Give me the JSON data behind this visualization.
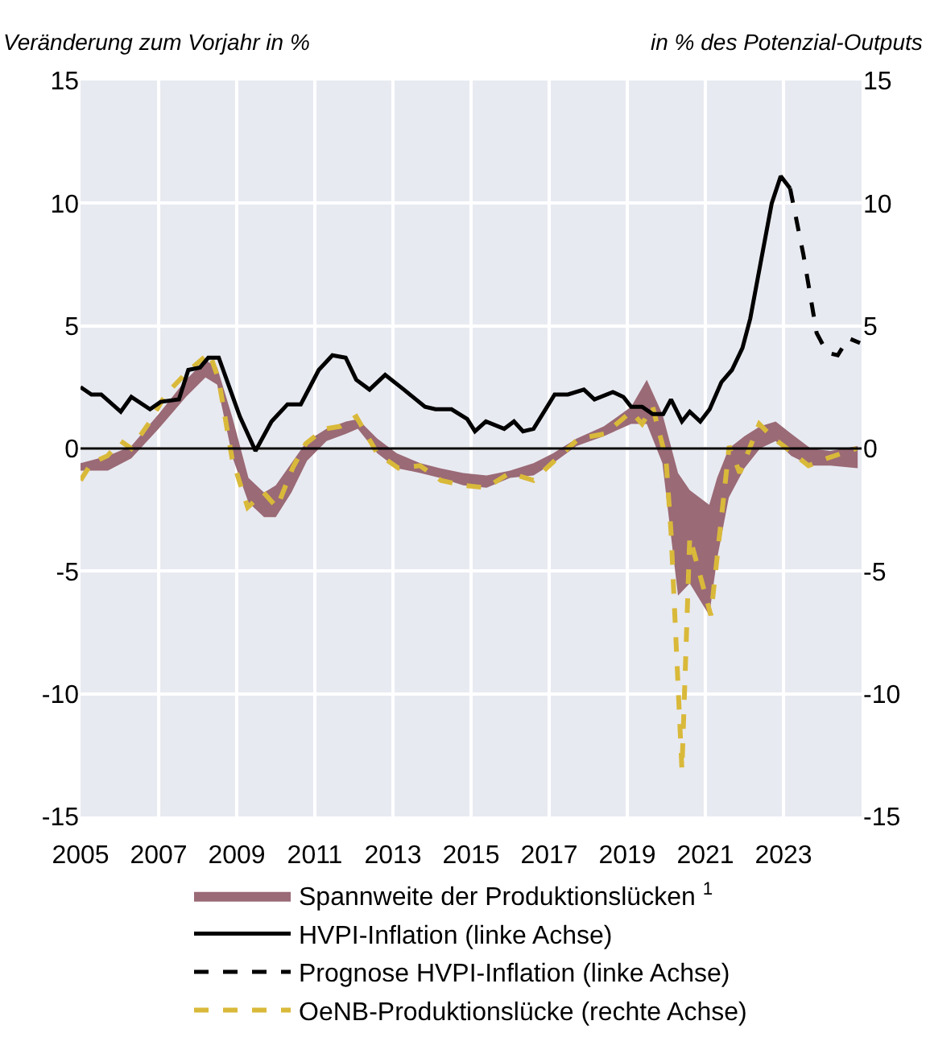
{
  "chart_data": {
    "type": "line",
    "ylabel": "Veränderung zum Vorjahr in %",
    "y2label": "in % des Potenzial-Outputs",
    "xlim": [
      2005,
      2025
    ],
    "xticks": [
      2005,
      2007,
      2009,
      2011,
      2013,
      2015,
      2017,
      2019,
      2021,
      2023
    ],
    "ylim": [
      -15,
      15
    ],
    "yticks": [
      -15,
      -10,
      -5,
      0,
      5,
      10,
      15
    ],
    "y2lim": [
      -15,
      15
    ],
    "y2ticks": [
      -15,
      -10,
      -5,
      0,
      5,
      10,
      15
    ],
    "grid": true,
    "legend": "bottom",
    "marker": "none",
    "ref_lines": [
      {
        "axis": "y",
        "value": 0,
        "color": "#000000"
      }
    ],
    "series": [
      {
        "name": "Spannweite der Produktionslücken $^{1}$",
        "type": "area",
        "axis": "y2",
        "color": "#9a6a76",
        "x": [
          2005.0,
          2005.7,
          2006.3,
          2007.0,
          2007.7,
          2008.2,
          2008.5,
          2008.9,
          2009.3,
          2009.7,
          2010.0,
          2010.4,
          2010.8,
          2011.3,
          2011.8,
          2012.1,
          2012.6,
          2013.1,
          2013.7,
          2014.2,
          2014.8,
          2015.4,
          2016.0,
          2016.6,
          2017.1,
          2017.7,
          2018.4,
          2019.1,
          2019.5,
          2019.9,
          2020.3,
          2020.6,
          2021.1,
          2021.3,
          2021.6,
          2022.0,
          2022.4,
          2022.8,
          2023.2,
          2023.7,
          2024.2,
          2024.9
        ],
        "values": [
          null,
          null,
          null,
          null,
          null,
          null,
          null,
          null,
          null,
          null,
          null,
          null,
          null,
          null,
          null,
          null,
          null,
          null,
          null,
          null,
          null,
          null,
          null,
          null,
          null,
          null,
          null,
          null,
          null,
          null,
          null,
          null,
          null,
          null,
          null,
          null,
          null,
          null,
          null,
          null,
          null,
          null
        ],
        "upper": [
          -0.6,
          -0.3,
          0.1,
          1.4,
          2.8,
          3.6,
          3.3,
          1.2,
          -1.2,
          -1.8,
          -1.5,
          -0.6,
          0.3,
          0.8,
          1.1,
          1.2,
          0.4,
          -0.2,
          -0.6,
          -0.8,
          -1.0,
          -1.1,
          -0.9,
          -0.6,
          -0.2,
          0.4,
          0.9,
          1.7,
          2.8,
          1.4,
          -1.0,
          -1.7,
          -2.3,
          -1.2,
          0.0,
          0.5,
          0.9,
          1.1,
          0.6,
          0.0,
          -0.1,
          0.1
        ],
        "lower": [
          -0.9,
          -0.9,
          -0.4,
          0.8,
          2.1,
          2.9,
          2.6,
          -0.4,
          -2.2,
          -2.8,
          -2.8,
          -1.8,
          -0.5,
          0.3,
          0.6,
          0.8,
          -0.2,
          -0.8,
          -1.0,
          -1.2,
          -1.5,
          -1.6,
          -1.2,
          -1.1,
          -0.6,
          0.1,
          0.5,
          1.0,
          1.0,
          -0.6,
          -6.0,
          -5.5,
          -6.8,
          -4.5,
          -2.0,
          -0.8,
          0.0,
          0.3,
          -0.3,
          -0.7,
          -0.7,
          -0.8
        ]
      },
      {
        "name": "HVPI-Inflation (linke Achse)",
        "line_style": "solid",
        "color": "#000000",
        "x": [
          2005.0,
          2005.28,
          2005.53,
          2006.03,
          2006.3,
          2006.78,
          2007.05,
          2007.52,
          2007.76,
          2008.06,
          2008.27,
          2008.54,
          2009.08,
          2009.48,
          2009.89,
          2010.3,
          2010.64,
          2011.1,
          2011.45,
          2011.79,
          2012.06,
          2012.4,
          2012.8,
          2013.28,
          2013.82,
          2014.09,
          2014.5,
          2014.9,
          2015.1,
          2015.38,
          2015.85,
          2016.1,
          2016.33,
          2016.6,
          2017.14,
          2017.48,
          2017.89,
          2018.16,
          2018.63,
          2018.9,
          2019.1,
          2019.38,
          2019.65,
          2019.92,
          2020.12,
          2020.4,
          2020.6,
          2020.87,
          2021.11,
          2021.41,
          2021.68,
          2021.95,
          2022.15,
          2022.43,
          2022.7,
          2022.93,
          2023.17
        ],
        "values": [
          2.5,
          2.2,
          2.2,
          1.5,
          2.1,
          1.6,
          1.9,
          2.0,
          3.2,
          3.3,
          3.7,
          3.7,
          1.3,
          -0.1,
          1.1,
          1.8,
          1.8,
          3.2,
          3.8,
          3.7,
          2.8,
          2.4,
          3.0,
          2.4,
          1.7,
          1.6,
          1.6,
          1.2,
          0.7,
          1.1,
          0.8,
          1.1,
          0.7,
          0.8,
          2.2,
          2.2,
          2.4,
          2.0,
          2.3,
          2.1,
          1.7,
          1.7,
          1.4,
          1.4,
          2.0,
          1.1,
          1.5,
          1.1,
          1.6,
          2.7,
          3.2,
          4.1,
          5.3,
          7.7,
          10.0,
          11.1,
          10.6
        ]
      },
      {
        "name": "Prognose HVPI-Inflation (linke Achse)",
        "line_style": "dashed",
        "color": "#000000",
        "x": [
          2023.17,
          2023.51,
          2023.85,
          2024.12,
          2024.39,
          2024.66,
          2024.96
        ],
        "values": [
          10.6,
          7.9,
          4.7,
          3.9,
          3.8,
          4.5,
          4.3
        ]
      },
      {
        "name": "OeNB-Produktionslücke (rechte Achse)",
        "line_style": "dashed",
        "axis": "y2",
        "color": "#d9b93a",
        "x": [
          2005.0,
          2005.28,
          2005.69,
          2006.03,
          2006.3,
          2006.78,
          2007.18,
          2007.72,
          2008.3,
          2008.54,
          2008.88,
          2009.28,
          2009.69,
          2010.03,
          2010.43,
          2010.77,
          2011.25,
          2011.65,
          2012.06,
          2012.6,
          2013.14,
          2013.69,
          2014.23,
          2014.77,
          2015.38,
          2015.99,
          2016.6,
          2017.07,
          2017.75,
          2018.43,
          2019.1,
          2019.38,
          2019.65,
          2019.99,
          2020.12,
          2020.4,
          2020.6,
          2021.14,
          2021.61,
          2021.88,
          2022.38,
          2022.76,
          2023.17,
          2023.64,
          2024.12,
          2024.87
        ],
        "values": [
          -1.3,
          -0.6,
          -0.3,
          0.3,
          0.0,
          1.1,
          2.2,
          3.1,
          3.9,
          2.8,
          -0.4,
          -2.4,
          -1.8,
          -2.4,
          -0.8,
          0.2,
          0.8,
          0.9,
          1.3,
          -0.2,
          -0.8,
          -0.7,
          -1.3,
          -1.5,
          -1.6,
          -1.0,
          -1.3,
          -0.6,
          0.4,
          0.6,
          1.5,
          1.0,
          1.7,
          -0.4,
          -3.4,
          -13.1,
          -3.6,
          -6.8,
          0.1,
          -1.0,
          1.0,
          0.4,
          -0.1,
          -0.7,
          -0.4,
          0.0
        ]
      }
    ]
  }
}
